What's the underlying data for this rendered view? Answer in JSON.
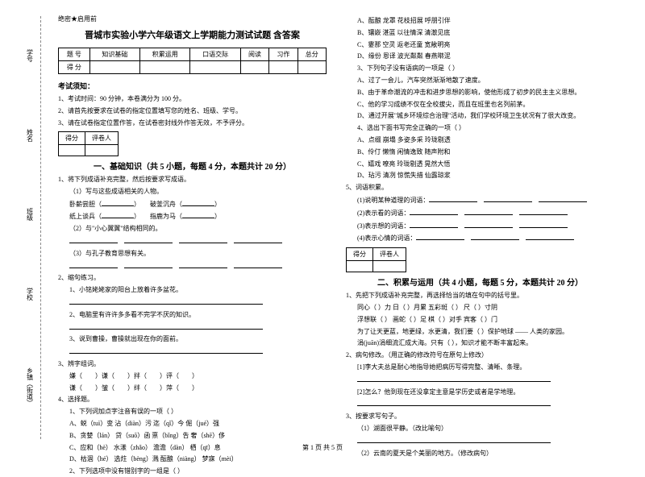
{
  "sidebar": {
    "items": [
      "学号",
      "姓名",
      "班级",
      "学校",
      "乡镇（街道）"
    ],
    "marks": [
      "题",
      "不",
      "内",
      "线",
      "封",
      "密"
    ]
  },
  "header_note": "绝密★启用前",
  "title": "晋城市实验小学六年级语文上学期能力测试试题 含答案",
  "score_table": {
    "row1": [
      "题    号",
      "知识基础",
      "积累运用",
      "口语交际",
      "阅读",
      "习作",
      "总分"
    ],
    "row2": [
      "得    分",
      "",
      "",
      "",
      "",
      "",
      ""
    ]
  },
  "exam_notice": {
    "heading": "考试须知：",
    "items": [
      "1、考试时间：90 分钟，本卷满分为 100 分。",
      "2、请首先按要求在试卷的指定位置填写您的姓名、班级、学号。",
      "3、请在试卷指定位置作答，在试卷密封线外作答无效，不予评分。"
    ]
  },
  "grader_labels": [
    "得分",
    "评卷人"
  ],
  "part1": {
    "title": "一、基础知识（共 5 小题，每题 4 分，本题共计 20 分）",
    "q1": {
      "stem": "1、将下列成语补充完整，然后按要求写成语。",
      "sub1": "（1）写与这些成语相关的人物。",
      "rows": [
        [
          "卧薪尝胆（",
          "）",
          "破釜沉舟（",
          "）"
        ],
        [
          "纸上谈兵（",
          "）",
          "指鹿为马（",
          "）"
        ]
      ],
      "sub2": "（2）与\"小心翼翼\"结构相同的。",
      "sub3": "（3）与孔子教育思想有关。"
    },
    "q2": {
      "stem": "2、缩句练习。",
      "items": [
        "1、小铭姥姥家的阳台上放着许多盆花。",
        "2、电脑里有许许多多看不完学不厌的知识。",
        "3、说到曹操，曹操就出现在你的面前。"
      ]
    },
    "q3": {
      "stem": "3、辨字组词。",
      "rows": [
        [
          "嫌（",
          "）",
          "谦（",
          "）",
          "拌（",
          "）",
          "评（",
          "）"
        ],
        [
          "谦（",
          "）",
          "皱（",
          "）",
          "绊（",
          "）",
          "萍（",
          "）"
        ]
      ]
    },
    "q4": {
      "stem": "4、选择题。",
      "sub": "1、下列词加点字注音有误的一项（    ）",
      "opts": [
        "A、蜕（tuì）变     沾（diàn）污     迄（qǐ）今       倔（jué）强",
        "B、贪婪（lán）     贷（suō）函     禀（bǐng）告     奢（shē）侈",
        "C、应和（hè）      水漾（zhǎo）    澹澹（dàn）      栖（qī）息",
        "D、枯涸（hé）      选炷（bèng）溅   酝酿（niàng）    梦寐（mèi）"
      ],
      "sub2": "2、下列选项中没有错别字的一组是（    ）"
    }
  },
  "part1b": {
    "opts2": [
      "A、酝酿    龙罩    花枝招展    呼朋引伴",
      "B、镶嵌    湛蓝    以往情深    清澈见底",
      "C、霎那    空灵    返老还童    宽敞明亮",
      "D、缘份    恩译    波光粼粼    春燕啭泥"
    ],
    "sub3": "3、下列句子没有语病的一项是（    ）",
    "opts3": [
      "A、过了一会儿，汽车突然渐渐地散了速度。",
      "B、由于革命潮流的冲击和进步思想的影响，使他形成了初步的民主主义思想。",
      "C、他的学习成绩不仅在全校拔尖，而且在班里也名列前茅。",
      "D、通过开展\"城乡环境综合治理\"活动，我们学校环境卫生状况有了很大改变。"
    ],
    "sub4": "4、选出下面书写完全正确的一项（    ）",
    "opts4": [
      "A、点缀    崩塌    多姿多采    玲珑剔透",
      "B、伶仃    懒惰    闲情逸致    随声附和",
      "C、嬉戏    嘹亮    玲珑剔透    晃然大悟",
      "D、玷污    清冽    惊慌失措    仙露琼浆"
    ]
  },
  "q5": {
    "stem": "5、词语积累。",
    "items": [
      "(1)说明某种道理的词语：",
      "(2)表示看的词语：",
      "(3)表示想的词语：",
      "(4)表示心情的词语："
    ]
  },
  "part2": {
    "title": "二、积累与运用（共 4 小题，每题 5 分，本题共计 20 分）",
    "q1": {
      "stem": "1、先把下列成语补充完整，再选择恰当的填在句中的括号里。",
      "rows": [
        "同心（  ）力    日（  ）月累    五彩斑（  ）    尺（  ）寸阴",
        "浮想联（  ）    画蛇（  ）足    棋（  ）对手    宾客（  ）门"
      ],
      "sents": [
        "为了让天更蓝，地更绿，水更清，我们要（          ）保护地球 —— 人类的家园。",
        "涓(juān)涓细流汇成大海。只有（          ），知识才能不断丰富起来。"
      ]
    },
    "q2": {
      "stem": "2、病句修改。（用正确的修改符号在原句上修改）",
      "items": [
        "[1]李大夫总是耐心地指导她把病历写得完整、清晰、条理。",
        "[2]怎么？他到现在还没拿定主意是学历史或者是学地理。"
      ]
    },
    "q3": {
      "stem": "3、按要求写句子。",
      "items": [
        "（1）湖面很平静。（改比喻句）",
        "（2）云南的夏天是个美丽的地方。（修改病句）"
      ]
    }
  },
  "footer": "第 1 页 共 5 页"
}
